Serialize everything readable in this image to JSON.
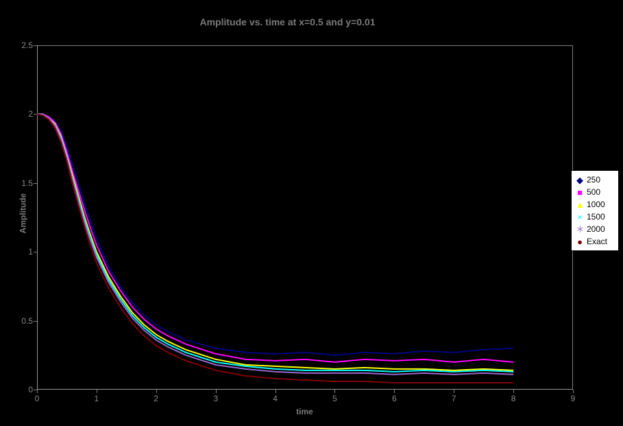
{
  "chart": {
    "type": "line",
    "title": "Amplitude vs. time at x=0.5 and y=0.01",
    "title_fontsize": 14,
    "title_color": "#7a7a7a",
    "xlabel": "time",
    "ylabel": "Amplitude",
    "label_fontsize": 12,
    "label_color": "#7a7a7a",
    "background_color": "#000000",
    "plot_background": "#000000",
    "plot_border_color": "#808080",
    "tick_font_color": "#888888",
    "tick_font_size": 12,
    "grid": false,
    "xlim": [
      0,
      9
    ],
    "ylim": [
      0,
      2.5
    ],
    "xticks": [
      0,
      1,
      2,
      3,
      4,
      5,
      6,
      7,
      8,
      9
    ],
    "yticks": [
      0,
      0.5,
      1,
      1.5,
      2,
      2.5
    ],
    "line_width": 2,
    "marker_size": 3,
    "series": [
      {
        "name": "250",
        "color": "#000080",
        "marker": "diamond",
        "x": [
          0,
          0.1,
          0.2,
          0.3,
          0.4,
          0.5,
          0.6,
          0.7,
          0.8,
          0.9,
          1.0,
          1.2,
          1.4,
          1.6,
          1.8,
          2.0,
          2.2,
          2.5,
          3.0,
          3.5,
          4.0,
          4.5,
          5.0,
          5.5,
          6.0,
          6.5,
          7.0,
          7.5,
          8.0
        ],
        "y": [
          2.0,
          2.0,
          1.98,
          1.95,
          1.88,
          1.76,
          1.63,
          1.49,
          1.35,
          1.22,
          1.1,
          0.9,
          0.75,
          0.63,
          0.54,
          0.47,
          0.42,
          0.36,
          0.3,
          0.27,
          0.26,
          0.27,
          0.25,
          0.27,
          0.26,
          0.28,
          0.27,
          0.29,
          0.3
        ]
      },
      {
        "name": "500",
        "color": "#ff00ff",
        "marker": "square",
        "x": [
          0,
          0.1,
          0.2,
          0.3,
          0.4,
          0.5,
          0.6,
          0.7,
          0.8,
          0.9,
          1.0,
          1.2,
          1.4,
          1.6,
          1.8,
          2.0,
          2.2,
          2.5,
          3.0,
          3.5,
          4.0,
          4.5,
          5.0,
          5.5,
          6.0,
          6.5,
          7.0,
          7.5,
          8.0
        ],
        "y": [
          2.0,
          2.0,
          1.98,
          1.94,
          1.86,
          1.73,
          1.58,
          1.44,
          1.3,
          1.17,
          1.05,
          0.86,
          0.72,
          0.6,
          0.51,
          0.44,
          0.39,
          0.33,
          0.26,
          0.22,
          0.21,
          0.22,
          0.2,
          0.22,
          0.21,
          0.22,
          0.2,
          0.22,
          0.2
        ]
      },
      {
        "name": "1000",
        "color": "#ffff00",
        "marker": "triangle",
        "x": [
          0,
          0.1,
          0.2,
          0.3,
          0.4,
          0.5,
          0.6,
          0.7,
          0.8,
          0.9,
          1.0,
          1.2,
          1.4,
          1.6,
          1.8,
          2.0,
          2.2,
          2.5,
          3.0,
          3.5,
          4.0,
          4.5,
          5.0,
          5.5,
          6.0,
          6.5,
          7.0,
          7.5,
          8.0
        ],
        "y": [
          2.0,
          2.0,
          1.97,
          1.93,
          1.84,
          1.7,
          1.55,
          1.4,
          1.25,
          1.12,
          1.0,
          0.82,
          0.68,
          0.56,
          0.47,
          0.4,
          0.35,
          0.29,
          0.22,
          0.18,
          0.17,
          0.16,
          0.15,
          0.16,
          0.15,
          0.15,
          0.14,
          0.15,
          0.14
        ]
      },
      {
        "name": "1500",
        "color": "#00ffff",
        "marker": "x",
        "x": [
          0,
          0.1,
          0.2,
          0.3,
          0.4,
          0.5,
          0.6,
          0.7,
          0.8,
          0.9,
          1.0,
          1.2,
          1.4,
          1.6,
          1.8,
          2.0,
          2.2,
          2.5,
          3.0,
          3.5,
          4.0,
          4.5,
          5.0,
          5.5,
          6.0,
          6.5,
          7.0,
          7.5,
          8.0
        ],
        "y": [
          2.0,
          2.0,
          1.97,
          1.92,
          1.83,
          1.69,
          1.53,
          1.38,
          1.23,
          1.1,
          0.98,
          0.8,
          0.66,
          0.54,
          0.45,
          0.38,
          0.33,
          0.27,
          0.2,
          0.17,
          0.15,
          0.14,
          0.14,
          0.14,
          0.13,
          0.14,
          0.13,
          0.14,
          0.13
        ]
      },
      {
        "name": "2000",
        "color": "#9966cc",
        "marker": "star",
        "x": [
          0,
          0.1,
          0.2,
          0.3,
          0.4,
          0.5,
          0.6,
          0.7,
          0.8,
          0.9,
          1.0,
          1.2,
          1.4,
          1.6,
          1.8,
          2.0,
          2.2,
          2.5,
          3.0,
          3.5,
          4.0,
          4.5,
          5.0,
          5.5,
          6.0,
          6.5,
          7.0,
          7.5,
          8.0
        ],
        "y": [
          2.0,
          2.0,
          1.97,
          1.92,
          1.82,
          1.68,
          1.52,
          1.36,
          1.21,
          1.08,
          0.96,
          0.78,
          0.64,
          0.52,
          0.43,
          0.36,
          0.31,
          0.25,
          0.18,
          0.15,
          0.13,
          0.12,
          0.12,
          0.12,
          0.11,
          0.12,
          0.11,
          0.12,
          0.11
        ]
      },
      {
        "name": "Exact",
        "color": "#800000",
        "marker": "dot",
        "x": [
          0,
          0.1,
          0.2,
          0.3,
          0.4,
          0.5,
          0.6,
          0.7,
          0.8,
          0.9,
          1.0,
          1.2,
          1.4,
          1.6,
          1.8,
          2.0,
          2.2,
          2.5,
          3.0,
          3.5,
          4.0,
          4.5,
          5.0,
          5.5,
          6.0,
          6.5,
          7.0,
          7.5,
          8.0
        ],
        "y": [
          2.0,
          1.99,
          1.96,
          1.9,
          1.8,
          1.66,
          1.49,
          1.33,
          1.18,
          1.04,
          0.92,
          0.74,
          0.6,
          0.48,
          0.39,
          0.32,
          0.27,
          0.21,
          0.14,
          0.1,
          0.08,
          0.07,
          0.06,
          0.06,
          0.05,
          0.05,
          0.05,
          0.05,
          0.05
        ]
      }
    ],
    "legend": {
      "position": "right-outside",
      "background": "#ffffff",
      "border_color": "#000000",
      "font_size": 12,
      "font_color": "#000000"
    }
  }
}
